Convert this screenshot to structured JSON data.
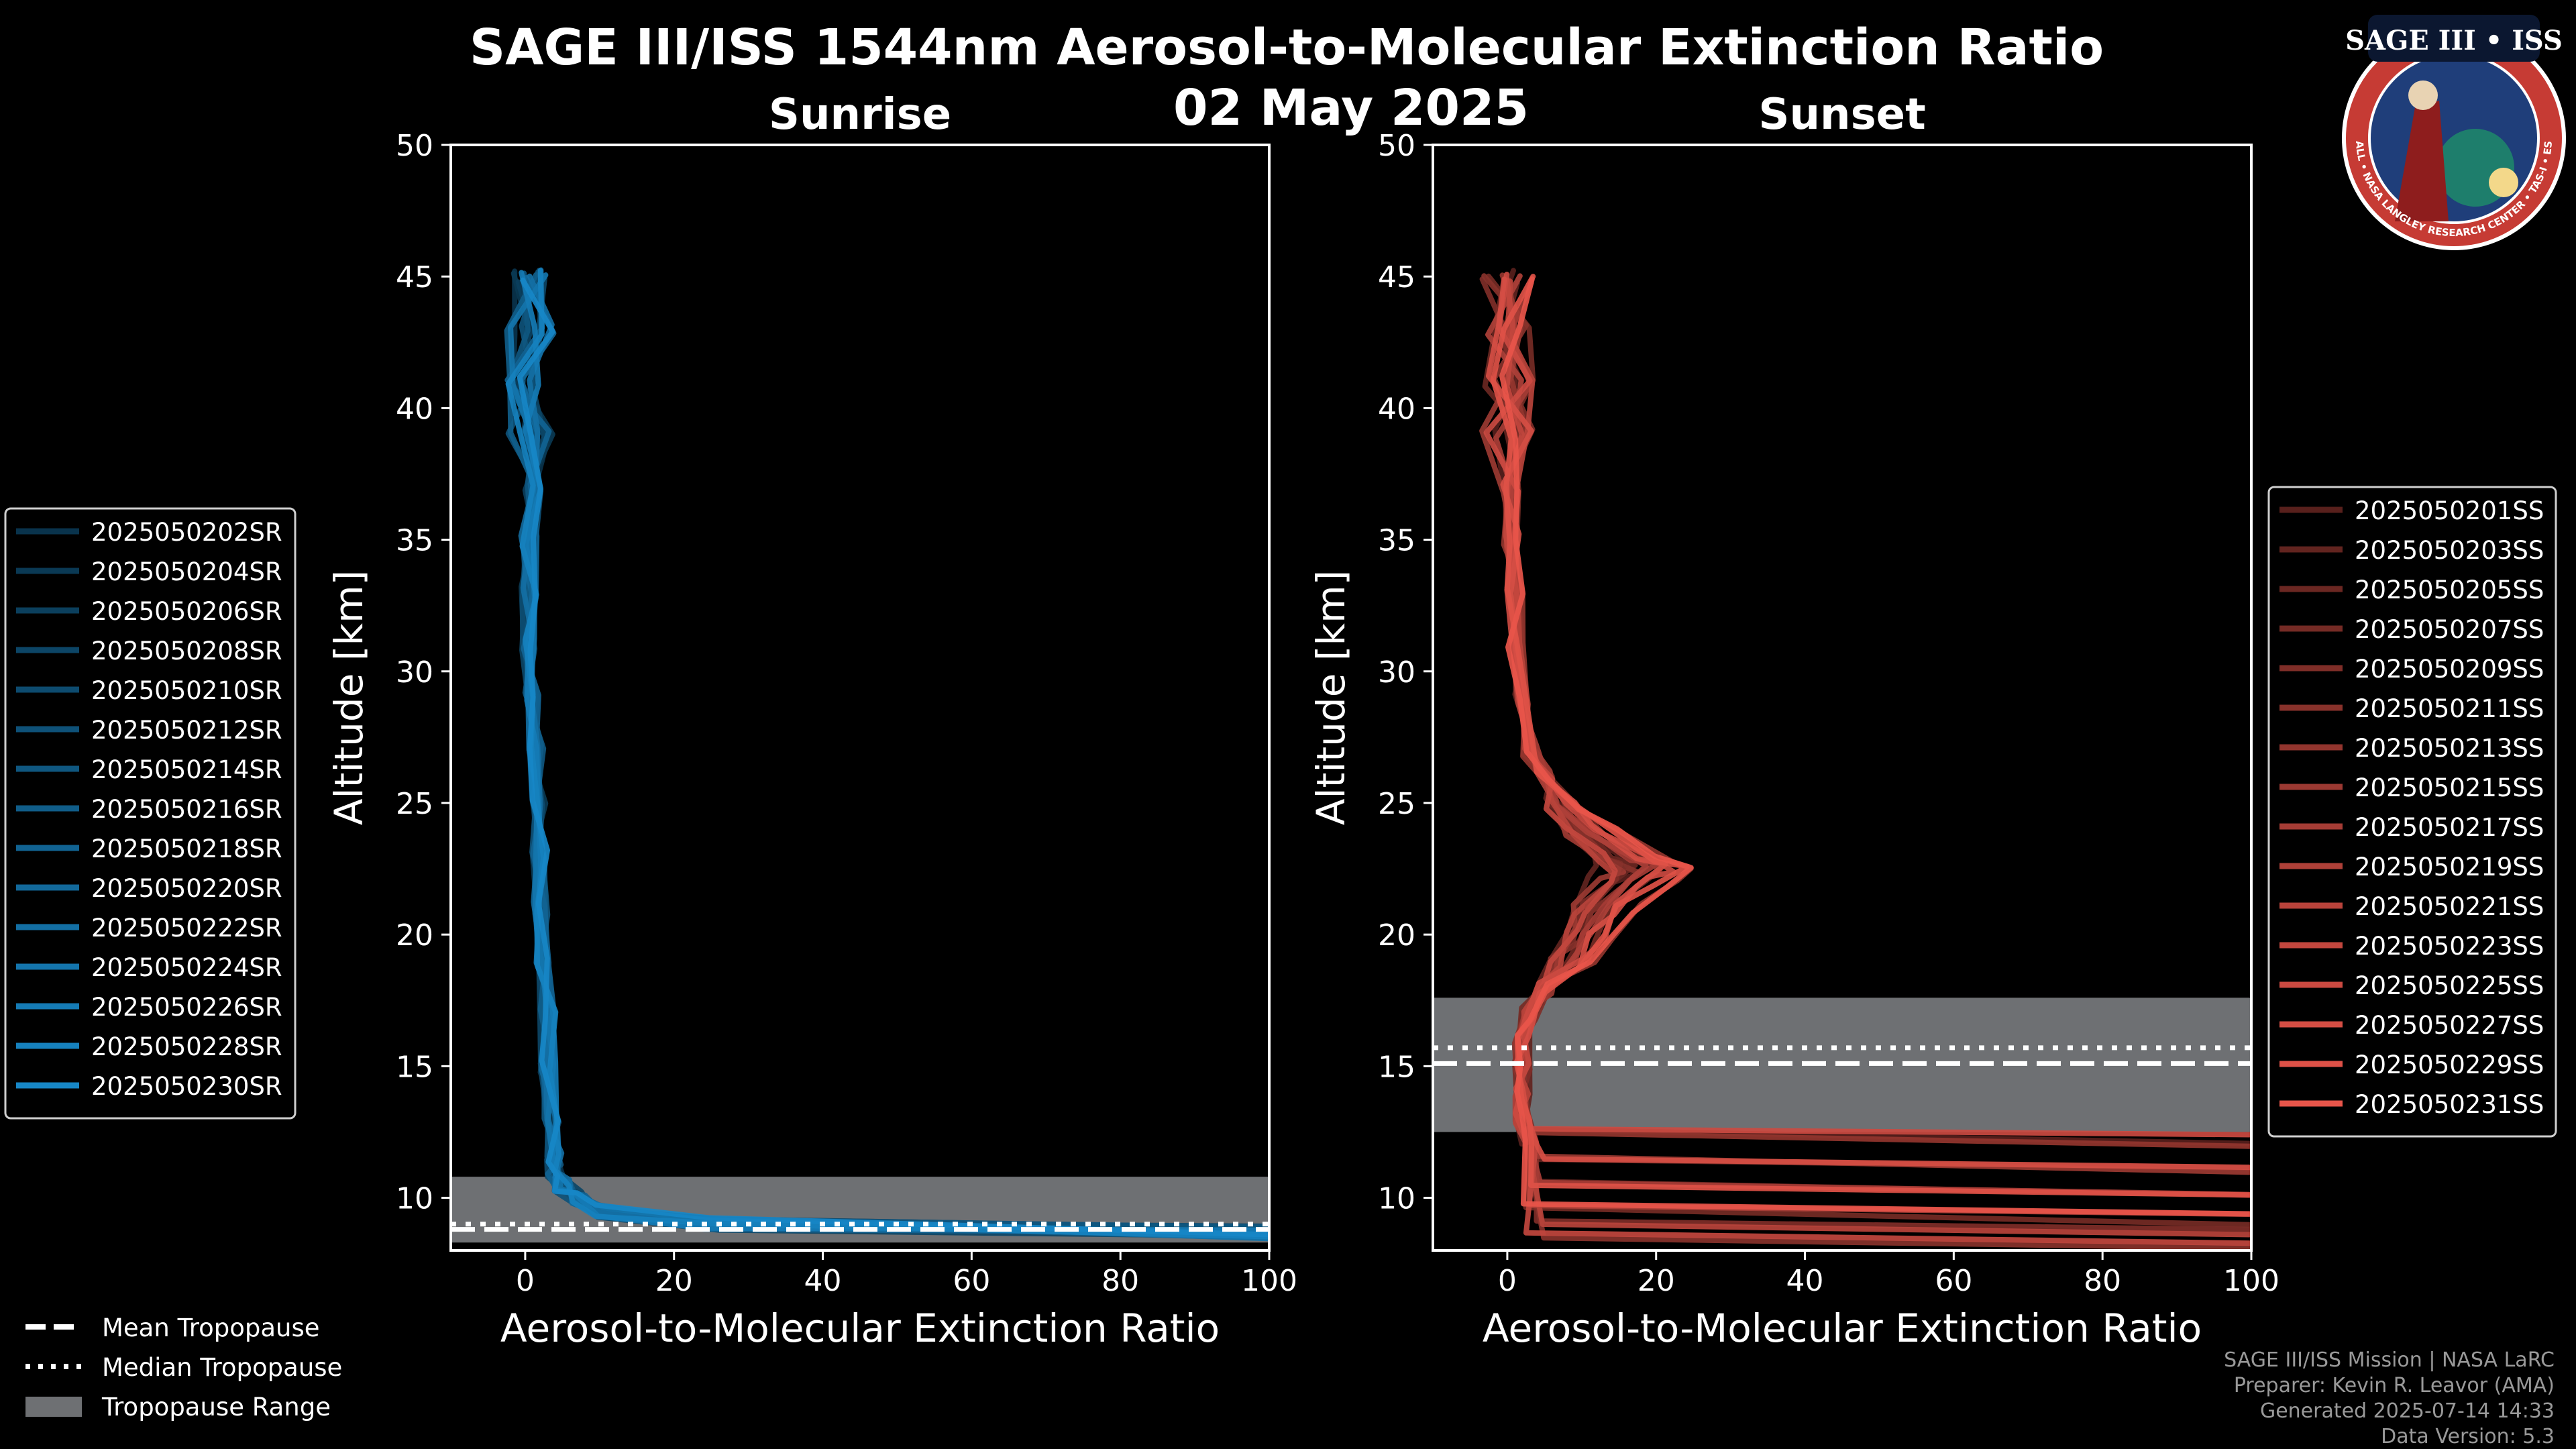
{
  "title": "SAGE III/ISS 1544nm Aerosol-to-Molecular Extinction Ratio",
  "date": "02 May 2025",
  "logo": {
    "name": "SAGE III • ISS",
    "ring": "BALL • NASA LANGLEY RESEARCH CENTER • TAS-I • ESA",
    "colors": {
      "ring": "#c63b34",
      "inner": "#1f3e7a",
      "dark": "#0b1730"
    }
  },
  "legend_common": {
    "items": [
      {
        "label": "Mean Tropopause",
        "style": "dashed"
      },
      {
        "label": "Median Tropopause",
        "style": "dotted"
      },
      {
        "label": "Tropopause Range",
        "style": "patch"
      }
    ]
  },
  "credits": [
    "SAGE III/ISS Mission | NASA LaRC",
    "Preparer: Kevin R. Leavor (AMA)",
    "Generated 2025-07-14 14:33",
    "Data Version: 5.3"
  ],
  "colors": {
    "sunrise": "#1787c7",
    "sunset": "#e8554a",
    "tropopause_band": "#6e7073",
    "axes": "#ffffff"
  },
  "chart_data": [
    {
      "type": "line",
      "title": "Sunrise",
      "xlabel": "Aerosol-to-Molecular Extinction Ratio",
      "ylabel": "Altitude [km]",
      "xlim": [
        -10,
        100
      ],
      "ylim": [
        8,
        50
      ],
      "xticks": [
        "0",
        "20",
        "40",
        "60",
        "80",
        "100"
      ],
      "yticks": [
        "10",
        "15",
        "20",
        "25",
        "30",
        "35",
        "40",
        "45",
        "50"
      ],
      "tropopause": {
        "mean": 8.8,
        "median": 9.0,
        "range": [
          8.3,
          10.8
        ]
      },
      "series_names": [
        "2025050202SR",
        "2025050204SR",
        "2025050206SR",
        "2025050208SR",
        "2025050210SR",
        "2025050212SR",
        "2025050214SR",
        "2025050216SR",
        "2025050218SR",
        "2025050220SR",
        "2025050222SR",
        "2025050224SR",
        "2025050226SR",
        "2025050228SR",
        "2025050230SR"
      ],
      "profile": {
        "altitude": [
          45,
          43,
          41,
          39,
          37,
          35,
          33,
          31,
          29,
          27,
          25,
          23,
          21,
          19,
          17,
          15,
          13,
          11.5,
          11,
          10.5,
          10,
          9.5,
          9,
          8.7
        ],
        "ratio": [
          0,
          0.5,
          0.5,
          1,
          1,
          0.5,
          0.5,
          0.5,
          1,
          1.5,
          2,
          2,
          2,
          2.5,
          3,
          3,
          3.5,
          4,
          4,
          5,
          7,
          10,
          25,
          100
        ]
      }
    },
    {
      "type": "line",
      "title": "Sunset",
      "xlabel": "Aerosol-to-Molecular Extinction Ratio",
      "ylabel": "Altitude [km]",
      "xlim": [
        -10,
        100
      ],
      "ylim": [
        8,
        50
      ],
      "xticks": [
        "0",
        "20",
        "40",
        "60",
        "80",
        "100"
      ],
      "yticks": [
        "10",
        "15",
        "20",
        "25",
        "30",
        "35",
        "40",
        "45",
        "50"
      ],
      "tropopause": {
        "mean": 15.1,
        "median": 15.7,
        "range": [
          12.5,
          17.6
        ]
      },
      "series_names": [
        "2025050201SS",
        "2025050203SS",
        "2025050205SS",
        "2025050207SS",
        "2025050209SS",
        "2025050211SS",
        "2025050213SS",
        "2025050215SS",
        "2025050217SS",
        "2025050219SS",
        "2025050221SS",
        "2025050223SS",
        "2025050225SS",
        "2025050227SS",
        "2025050229SS",
        "2025050231SS"
      ],
      "profile": {
        "altitude": [
          45,
          43,
          41,
          39,
          37,
          35,
          33,
          31,
          29,
          27,
          26,
          25,
          24,
          23,
          22.5,
          22,
          21,
          20,
          19,
          18,
          17,
          16,
          15,
          14,
          13,
          12
        ],
        "ratio": [
          0,
          0,
          0,
          0,
          0.5,
          0.5,
          1,
          1,
          2,
          3,
          5,
          7,
          10,
          15,
          18,
          16,
          12,
          10,
          8,
          5,
          3,
          2,
          2,
          2,
          2,
          3
        ]
      }
    }
  ]
}
